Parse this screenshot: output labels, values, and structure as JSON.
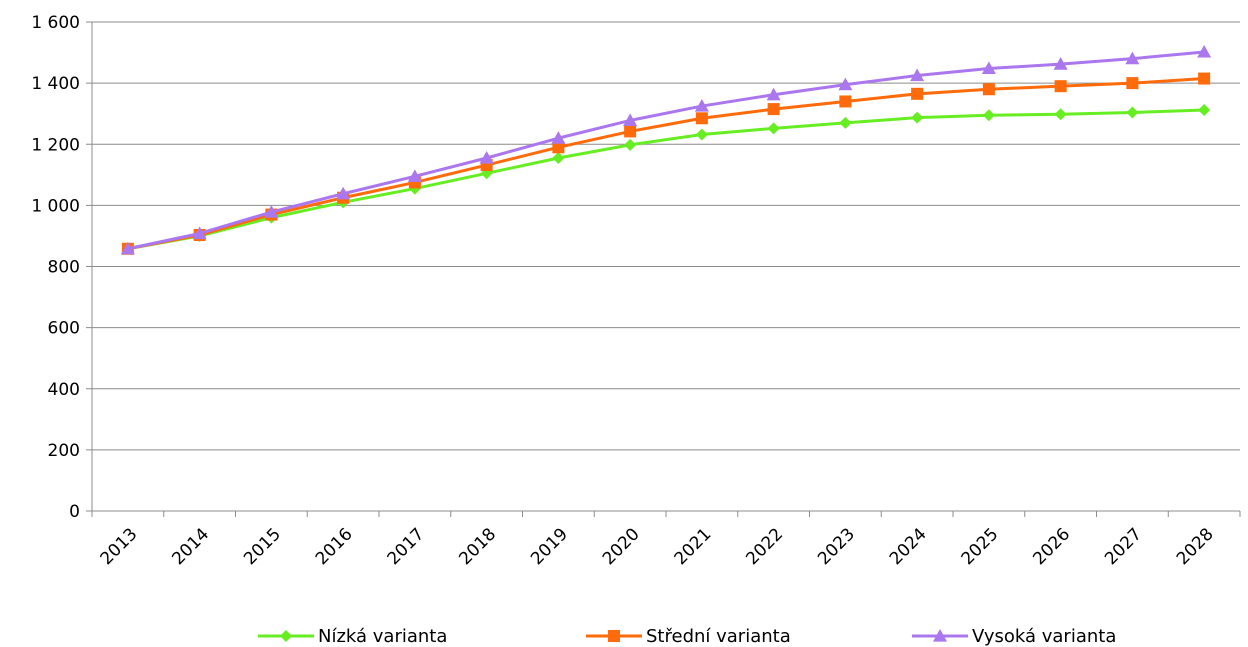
{
  "chart_data": {
    "type": "line",
    "title": "",
    "xlabel": "",
    "ylabel": "",
    "categories": [
      "2013",
      "2014",
      "2015",
      "2016",
      "2017",
      "2018",
      "2019",
      "2020",
      "2021",
      "2022",
      "2023",
      "2024",
      "2025",
      "2026",
      "2027",
      "2028"
    ],
    "ylim": [
      0,
      1600
    ],
    "yticks": [
      0,
      200,
      400,
      600,
      800,
      1000,
      1200,
      1400,
      1600
    ],
    "ytick_labels": [
      "0",
      "200",
      "400",
      "600",
      "800",
      "1 000",
      "1 200",
      "1 400",
      "1 600"
    ],
    "grid": "horizontal",
    "legend_position": "bottom",
    "series": [
      {
        "name": "Nízká varianta",
        "color": "#66ee22",
        "marker": "diamond",
        "values": [
          858,
          900,
          960,
          1010,
          1055,
          1105,
          1155,
          1198,
          1232,
          1252,
          1270,
          1287,
          1295,
          1298,
          1304,
          1312
        ]
      },
      {
        "name": "Střední varianta",
        "color": "#ff6a0a",
        "marker": "square",
        "values": [
          858,
          903,
          970,
          1025,
          1075,
          1132,
          1190,
          1242,
          1285,
          1315,
          1340,
          1365,
          1380,
          1390,
          1400,
          1415
        ]
      },
      {
        "name": "Vysoká varianta",
        "color": "#aa77ee",
        "marker": "triangle",
        "values": [
          858,
          908,
          978,
          1038,
          1095,
          1155,
          1220,
          1278,
          1325,
          1362,
          1395,
          1425,
          1448,
          1462,
          1480,
          1502
        ]
      }
    ]
  }
}
